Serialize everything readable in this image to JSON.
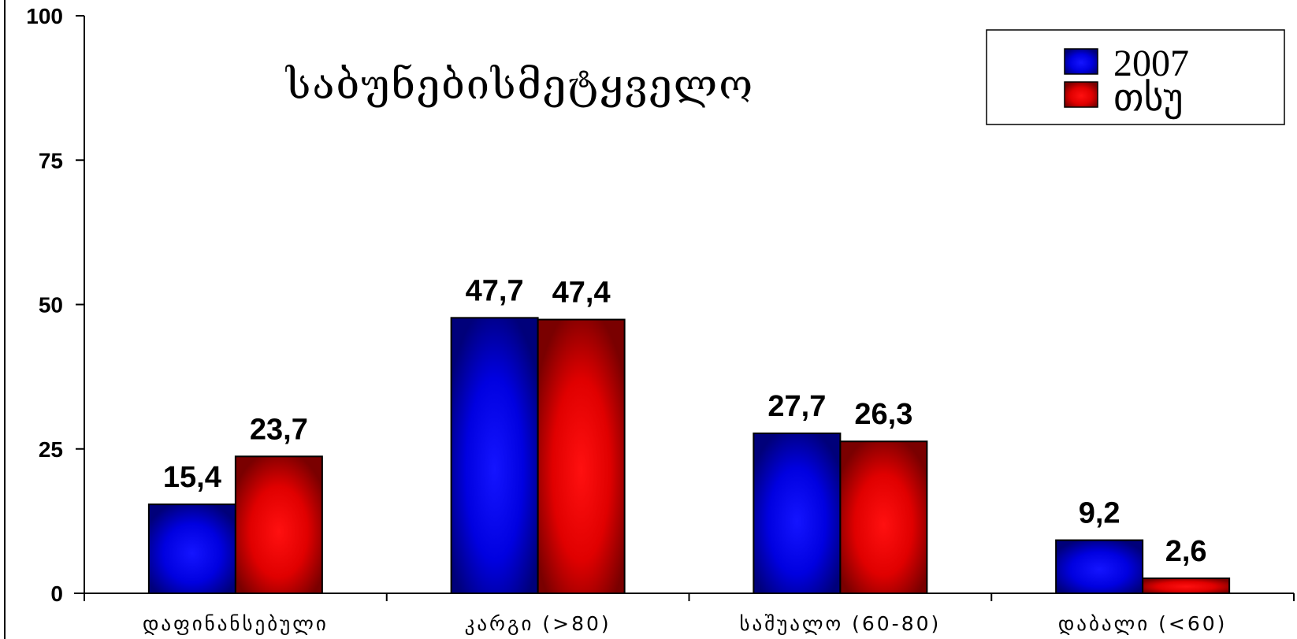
{
  "chart_data": {
    "type": "bar",
    "title": "საბუნებისმეტყველო",
    "categories": [
      "დაფინანსებული",
      "კარგი (>80)",
      "საშუალო (60-80)",
      "დაბალი (<60)"
    ],
    "series": [
      {
        "name": "2007",
        "values": [
          15.4,
          47.7,
          27.7,
          9.2
        ],
        "labels": [
          "15,4",
          "47,7",
          "27,7",
          "9,2"
        ],
        "color": "#0000ff"
      },
      {
        "name": "თსუ",
        "values": [
          23.7,
          47.4,
          26.3,
          2.6
        ],
        "labels": [
          "23,7",
          "47,4",
          "26,3",
          "2,6"
        ],
        "color": "#ff0000"
      }
    ],
    "ylim": [
      0,
      100
    ],
    "yticks": [
      "0",
      "25",
      "50",
      "75",
      "100"
    ],
    "xlabel": "",
    "ylabel": "",
    "grid": false,
    "legend_position": "top-right"
  }
}
